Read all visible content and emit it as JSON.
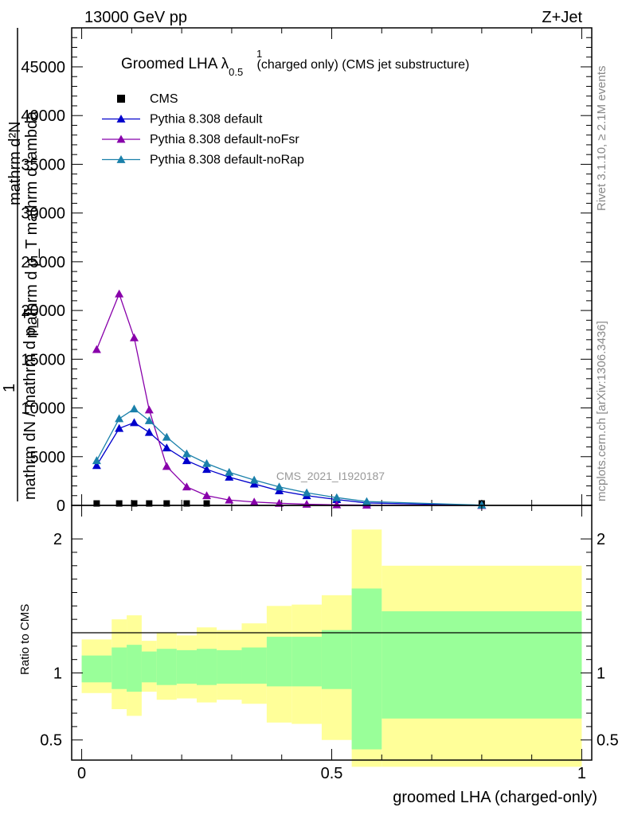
{
  "header": {
    "left": "13000 GeV pp",
    "right": "Z+Jet"
  },
  "side_labels": {
    "rivet": "Rivet 3.1.10, ≥ 2.1M events",
    "mcplots": "mcplots.cern.ch [arXiv:1306.3436]"
  },
  "watermark": "CMS_2021_I1920187",
  "chart_data": [
    {
      "type": "line",
      "title": "Groomed LHA λ",
      "title_sup": "1",
      "title_sub": "0.5",
      "title_suffix": "(charged only) (CMS jet substructure)",
      "ylabel_top": "mathrm d²N",
      "ylabel_mid": "mathrm d p_T mathrm d lambda",
      "ylabel_frac_num": "1",
      "ylabel_frac_den": "mathrm dN / mathrm d p_T",
      "xlim": [
        -0.02,
        1.02
      ],
      "ylim": [
        0,
        49000
      ],
      "yticks": [
        0,
        5000,
        10000,
        15000,
        20000,
        25000,
        30000,
        35000,
        40000,
        45000
      ],
      "yticklabels": [
        "0",
        "5000",
        "10000",
        "15000",
        "20000",
        "25000",
        "30000",
        "35000",
        "40000",
        "45000"
      ],
      "legend_position": "top-left",
      "series": [
        {
          "name": "CMS",
          "color": "#000000",
          "marker": "square",
          "x": [
            0.03,
            0.075,
            0.105,
            0.135,
            0.17,
            0.21,
            0.25,
            0.8
          ],
          "y": [
            200,
            200,
            200,
            200,
            200,
            200,
            200,
            200
          ]
        },
        {
          "name": "Pythia 8.308 default",
          "color": "#0000cc",
          "marker": "triangle",
          "x": [
            0.03,
            0.075,
            0.105,
            0.135,
            0.17,
            0.21,
            0.25,
            0.295,
            0.345,
            0.395,
            0.45,
            0.51,
            0.57,
            0.8
          ],
          "y": [
            4100,
            7900,
            8500,
            7500,
            5900,
            4600,
            3700,
            2900,
            2200,
            1500,
            1000,
            600,
            250,
            20
          ]
        },
        {
          "name": "Pythia 8.308 default-noFsr",
          "color": "#8800aa",
          "marker": "triangle",
          "x": [
            0.03,
            0.075,
            0.105,
            0.135,
            0.17,
            0.21,
            0.25,
            0.295,
            0.345,
            0.395,
            0.45,
            0.51,
            0.57,
            0.8
          ],
          "y": [
            16000,
            21700,
            17200,
            9800,
            4000,
            1900,
            1000,
            550,
            350,
            220,
            120,
            60,
            30,
            5
          ]
        },
        {
          "name": "Pythia 8.308 default-noRap",
          "color": "#1a80aa",
          "marker": "triangle",
          "x": [
            0.03,
            0.075,
            0.105,
            0.135,
            0.17,
            0.21,
            0.25,
            0.295,
            0.345,
            0.395,
            0.45,
            0.51,
            0.57,
            0.8
          ],
          "y": [
            4600,
            8900,
            9900,
            8700,
            7000,
            5300,
            4300,
            3400,
            2600,
            1900,
            1300,
            800,
            400,
            30
          ]
        }
      ]
    },
    {
      "type": "area",
      "ylabel": "Ratio to CMS",
      "xlabel": "groomed LHA (charged-only)",
      "xlim": [
        -0.02,
        1.02
      ],
      "ylim": [
        0.35,
        2.25
      ],
      "xticks": [
        0,
        0.5,
        1
      ],
      "xticklabels": [
        "0",
        "0.5",
        "1"
      ],
      "yticks": [
        0.5,
        1,
        2
      ],
      "yticklabels": [
        "0.5",
        "1",
        "2"
      ],
      "reference_line": 1,
      "bands": {
        "bins": [
          [
            0,
            0.06
          ],
          [
            0.06,
            0.09
          ],
          [
            0.09,
            0.12
          ],
          [
            0.12,
            0.15
          ],
          [
            0.15,
            0.19
          ],
          [
            0.19,
            0.23
          ],
          [
            0.23,
            0.27
          ],
          [
            0.27,
            0.32
          ],
          [
            0.32,
            0.37
          ],
          [
            0.37,
            0.42
          ],
          [
            0.42,
            0.48
          ],
          [
            0.48,
            0.54
          ],
          [
            0.54,
            0.6
          ],
          [
            0.6,
            1.0
          ]
        ],
        "green_low": [
          0.93,
          0.88,
          0.86,
          0.93,
          0.91,
          0.92,
          0.91,
          0.92,
          0.92,
          0.9,
          0.9,
          0.88,
          0.43,
          0.66
        ],
        "green_high": [
          1.13,
          1.19,
          1.21,
          1.16,
          1.18,
          1.17,
          1.18,
          1.17,
          1.19,
          1.27,
          1.27,
          1.32,
          1.63,
          1.46
        ],
        "yellow_low": [
          0.85,
          0.73,
          0.68,
          0.86,
          0.8,
          0.81,
          0.78,
          0.8,
          0.77,
          0.63,
          0.62,
          0.5,
          0.3,
          0.3
        ],
        "yellow_high": [
          1.25,
          1.4,
          1.43,
          1.24,
          1.3,
          1.28,
          1.34,
          1.32,
          1.37,
          1.5,
          1.51,
          1.58,
          2.07,
          1.8
        ]
      },
      "colors": {
        "green": "#99ff99",
        "yellow": "#ffff99"
      }
    }
  ]
}
